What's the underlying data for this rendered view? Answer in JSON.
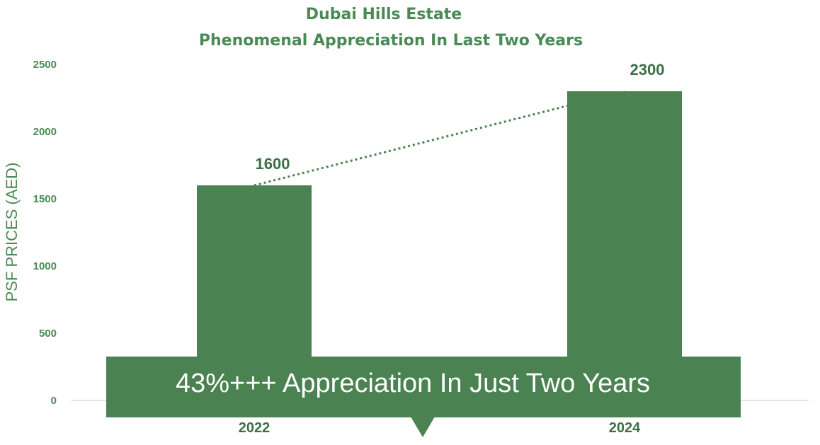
{
  "chart_data": {
    "type": "bar",
    "title": "Dubai Hills Estate",
    "subtitle": "Phenomenal Appreciation In Last Two Years",
    "xlabel": "",
    "ylabel": "PSF PRICES (AED)",
    "categories": [
      "2022",
      "2024"
    ],
    "values": [
      1600,
      2300
    ],
    "data_labels": [
      "1600",
      "2300"
    ],
    "ylim": [
      0,
      2500
    ],
    "yticks": [
      "0",
      "500",
      "1000",
      "1500",
      "2000",
      "2500"
    ],
    "trendline": "dotted",
    "grid": false,
    "legend": "none",
    "bar_color": "#4a8251",
    "text_color": "#4a8a55"
  },
  "banner": {
    "text": "43%+++ Appreciation In Just Two Years",
    "color": "#4a8251"
  }
}
